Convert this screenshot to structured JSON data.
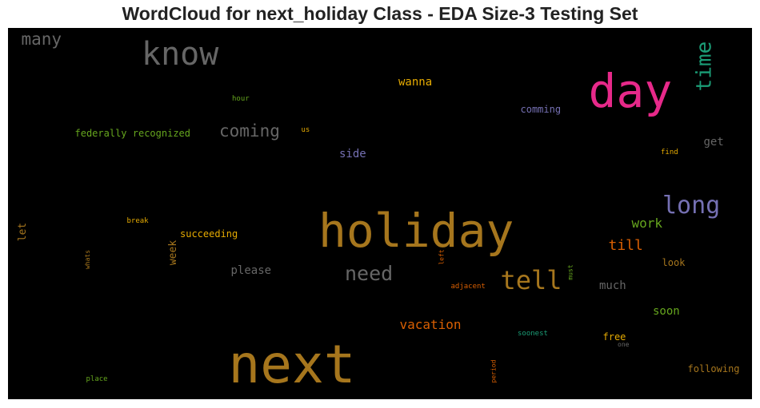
{
  "title": "WordCloud for next_holiday Class - EDA Size-3 Testing Set",
  "words": [
    {
      "text": "holiday",
      "color": "#a6761d",
      "vertical": false
    },
    {
      "text": "next",
      "color": "#a6761d",
      "vertical": false
    },
    {
      "text": "day",
      "color": "#e7298a",
      "vertical": false
    },
    {
      "text": "know",
      "color": "#666666",
      "vertical": false
    },
    {
      "text": "time",
      "color": "#1b9e77",
      "vertical": true
    },
    {
      "text": "tell",
      "color": "#a6761d",
      "vertical": false
    },
    {
      "text": "long",
      "color": "#7570b3",
      "vertical": false
    },
    {
      "text": "need",
      "color": "#666666",
      "vertical": false
    },
    {
      "text": "coming",
      "color": "#666666",
      "vertical": false
    },
    {
      "text": "many",
      "color": "#666666",
      "vertical": false
    },
    {
      "text": "vacation",
      "color": "#d95f02",
      "vertical": false
    },
    {
      "text": "till",
      "color": "#d95f02",
      "vertical": false
    },
    {
      "text": "work",
      "color": "#66a61e",
      "vertical": false
    },
    {
      "text": "wanna",
      "color": "#e6ab02",
      "vertical": false
    },
    {
      "text": "please",
      "color": "#666666",
      "vertical": false
    },
    {
      "text": "soon",
      "color": "#66a61e",
      "vertical": false
    },
    {
      "text": "much",
      "color": "#666666",
      "vertical": false
    },
    {
      "text": "side",
      "color": "#7570b3",
      "vertical": false
    },
    {
      "text": "get",
      "color": "#666666",
      "vertical": false
    },
    {
      "text": "federally recognized",
      "color": "#66a61e",
      "vertical": false
    },
    {
      "text": "succeeding",
      "color": "#e6ab02",
      "vertical": false
    },
    {
      "text": "week",
      "color": "#a6761d",
      "vertical": true
    },
    {
      "text": "let",
      "color": "#a6761d",
      "vertical": true
    },
    {
      "text": "comming",
      "color": "#7570b3",
      "vertical": false
    },
    {
      "text": "following",
      "color": "#a6761d",
      "vertical": false
    },
    {
      "text": "free",
      "color": "#e6ab02",
      "vertical": false
    },
    {
      "text": "look",
      "color": "#a6761d",
      "vertical": false
    },
    {
      "text": "hour",
      "color": "#66a61e",
      "vertical": false
    },
    {
      "text": "us",
      "color": "#e6ab02",
      "vertical": false
    },
    {
      "text": "find",
      "color": "#e6ab02",
      "vertical": false
    },
    {
      "text": "break",
      "color": "#e6ab02",
      "vertical": false
    },
    {
      "text": "whats",
      "color": "#a6761d",
      "vertical": true
    },
    {
      "text": "left",
      "color": "#d95f02",
      "vertical": true
    },
    {
      "text": "adjacent",
      "color": "#d95f02",
      "vertical": false
    },
    {
      "text": "must",
      "color": "#66a61e",
      "vertical": true
    },
    {
      "text": "soonest",
      "color": "#1b9e77",
      "vertical": false
    },
    {
      "text": "one",
      "color": "#666666",
      "vertical": false
    },
    {
      "text": "place",
      "color": "#66a61e",
      "vertical": false
    },
    {
      "text": "period",
      "color": "#d95f02",
      "vertical": true
    }
  ]
}
